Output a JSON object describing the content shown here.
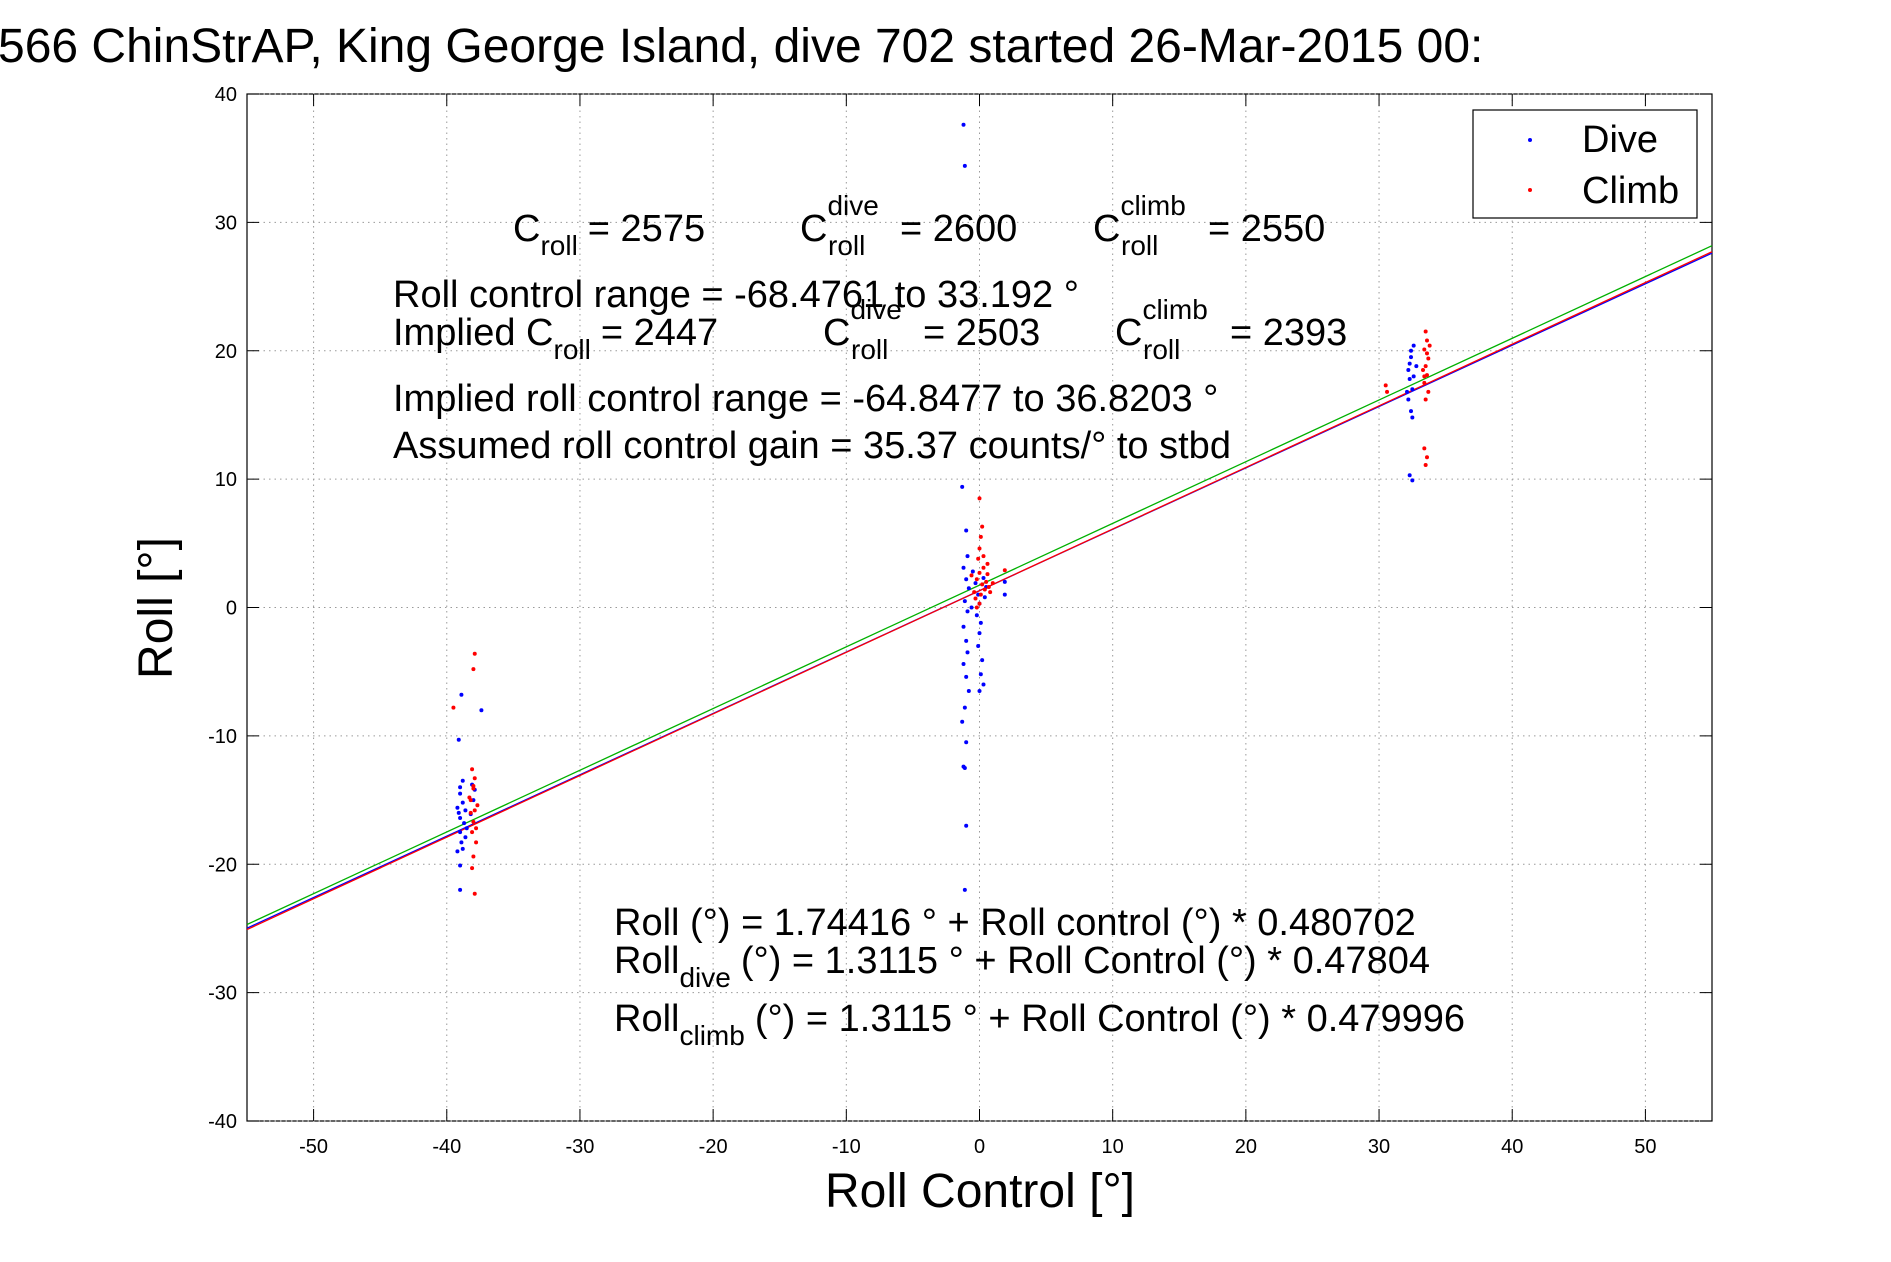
{
  "chart_data": {
    "type": "scatter",
    "title": "566 ChinStrAP, King George Island, dive 702 started 26-Mar-2015 00:",
    "xlabel": "Roll Control [°]",
    "ylabel": "Roll [°]",
    "xlim": [
      -55,
      55
    ],
    "ylim": [
      -40,
      40
    ],
    "xticks": [
      -50,
      -40,
      -30,
      -20,
      -10,
      0,
      10,
      20,
      30,
      40,
      50
    ],
    "yticks": [
      -40,
      -30,
      -20,
      -10,
      0,
      10,
      20,
      30,
      40
    ],
    "grid": true,
    "legend_position": "top-right",
    "colors": {
      "dive": "#0000ff",
      "climb": "#ff0000",
      "fit_all": "#00b000"
    },
    "series": [
      {
        "name": "Dive",
        "color": "#0000ff",
        "points": [
          [
            -39.0,
            -14.5
          ],
          [
            -38.8,
            -15.2
          ],
          [
            -39.1,
            -16.0
          ],
          [
            -38.7,
            -16.8
          ],
          [
            -39.0,
            -17.5
          ],
          [
            -38.9,
            -18.3
          ],
          [
            -39.2,
            -19.0
          ],
          [
            -39.0,
            -20.1
          ],
          [
            -39.0,
            -22.0
          ],
          [
            -39.1,
            -10.3
          ],
          [
            -39.0,
            -14.0
          ],
          [
            -38.8,
            -13.5
          ],
          [
            -38.6,
            -15.8
          ],
          [
            -39.0,
            -16.4
          ],
          [
            -38.5,
            -17.2
          ],
          [
            -38.0,
            -15.0
          ],
          [
            -38.2,
            -16.1
          ],
          [
            -37.9,
            -14.2
          ],
          [
            -38.1,
            -13.8
          ],
          [
            -37.4,
            -8.0
          ],
          [
            -38.9,
            -6.8
          ],
          [
            -38.8,
            -18.8
          ],
          [
            -38.6,
            -17.9
          ],
          [
            -39.2,
            -15.6
          ],
          [
            -1.2,
            37.6
          ],
          [
            -1.1,
            34.4
          ],
          [
            -1.3,
            9.4
          ],
          [
            -1.0,
            6.0
          ],
          [
            -0.9,
            4.0
          ],
          [
            -1.2,
            3.1
          ],
          [
            -1.0,
            2.2
          ],
          [
            -0.8,
            1.5
          ],
          [
            -1.1,
            0.5
          ],
          [
            -0.9,
            -0.3
          ],
          [
            -1.2,
            -1.5
          ],
          [
            -1.0,
            -2.6
          ],
          [
            -0.9,
            -3.5
          ],
          [
            -1.2,
            -4.4
          ],
          [
            -1.0,
            -5.4
          ],
          [
            -0.8,
            -6.5
          ],
          [
            -1.1,
            -7.8
          ],
          [
            -1.3,
            -8.9
          ],
          [
            -1.0,
            -10.5
          ],
          [
            -1.2,
            -12.4
          ],
          [
            -1.1,
            -12.5
          ],
          [
            -1.0,
            -17.0
          ],
          [
            -1.1,
            -22.0
          ],
          [
            -0.5,
            2.8
          ],
          [
            -0.3,
            1.9
          ],
          [
            -0.1,
            1.0
          ],
          [
            0.0,
            0.3
          ],
          [
            -0.2,
            -0.6
          ],
          [
            0.1,
            -1.2
          ],
          [
            0.0,
            -2.0
          ],
          [
            -0.1,
            -3.0
          ],
          [
            0.2,
            -4.1
          ],
          [
            0.1,
            -5.2
          ],
          [
            0.3,
            -6.0
          ],
          [
            0.0,
            -6.5
          ],
          [
            0.4,
            0.8
          ],
          [
            0.5,
            1.6
          ],
          [
            0.3,
            2.3
          ],
          [
            -0.6,
            0.0
          ],
          [
            1.9,
            2.0
          ],
          [
            1.9,
            1.0
          ],
          [
            32.2,
            18.5
          ],
          [
            32.4,
            19.5
          ],
          [
            32.6,
            20.4
          ],
          [
            32.3,
            17.8
          ],
          [
            32.5,
            17.0
          ],
          [
            32.2,
            16.2
          ],
          [
            32.4,
            15.3
          ],
          [
            32.5,
            14.8
          ],
          [
            32.3,
            19.0
          ],
          [
            32.6,
            18.0
          ],
          [
            32.4,
            20.0
          ],
          [
            32.5,
            9.9
          ],
          [
            32.3,
            10.3
          ],
          [
            32.8,
            18.8
          ],
          [
            32.1,
            16.8
          ]
        ]
      },
      {
        "name": "Climb",
        "color": "#ff0000",
        "points": [
          [
            -39.5,
            -7.8
          ],
          [
            -37.9,
            -3.6
          ],
          [
            -38.0,
            -4.8
          ],
          [
            -38.1,
            -12.6
          ],
          [
            -37.9,
            -13.3
          ],
          [
            -38.0,
            -14.1
          ],
          [
            -38.2,
            -15.0
          ],
          [
            -37.9,
            -15.8
          ],
          [
            -38.0,
            -16.7
          ],
          [
            -38.1,
            -17.5
          ],
          [
            -37.8,
            -18.3
          ],
          [
            -38.0,
            -19.4
          ],
          [
            -38.1,
            -20.3
          ],
          [
            -37.9,
            -22.3
          ],
          [
            -38.2,
            -16.0
          ],
          [
            -37.7,
            -15.4
          ],
          [
            -38.3,
            -14.8
          ],
          [
            -38.0,
            -13.9
          ],
          [
            -37.8,
            -17.2
          ],
          [
            0.0,
            8.5
          ],
          [
            0.2,
            6.3
          ],
          [
            0.1,
            5.5
          ],
          [
            0.0,
            4.6
          ],
          [
            -0.1,
            3.8
          ],
          [
            0.3,
            3.1
          ],
          [
            0.0,
            2.7
          ],
          [
            -0.2,
            2.2
          ],
          [
            0.2,
            1.8
          ],
          [
            0.4,
            1.4
          ],
          [
            0.1,
            1.0
          ],
          [
            -0.3,
            0.7
          ],
          [
            0.0,
            0.3
          ],
          [
            0.5,
            2.0
          ],
          [
            0.6,
            2.6
          ],
          [
            0.7,
            1.6
          ],
          [
            0.3,
            4.0
          ],
          [
            -0.4,
            1.2
          ],
          [
            -0.6,
            2.5
          ],
          [
            1.0,
            1.9
          ],
          [
            0.8,
            1.2
          ],
          [
            1.9,
            2.9
          ],
          [
            -0.2,
            0.0
          ],
          [
            0.6,
            3.4
          ],
          [
            30.5,
            17.3
          ],
          [
            30.6,
            16.8
          ],
          [
            33.5,
            21.5
          ],
          [
            33.6,
            20.8
          ],
          [
            33.4,
            20.1
          ],
          [
            33.7,
            19.4
          ],
          [
            33.5,
            18.8
          ],
          [
            33.6,
            18.1
          ],
          [
            33.4,
            17.5
          ],
          [
            33.7,
            16.8
          ],
          [
            33.5,
            16.2
          ],
          [
            33.6,
            19.8
          ],
          [
            33.3,
            18.5
          ],
          [
            33.8,
            20.4
          ],
          [
            33.4,
            12.4
          ],
          [
            33.6,
            11.7
          ],
          [
            33.5,
            11.1
          ],
          [
            33.4,
            18.0
          ]
        ]
      }
    ],
    "fit_lines": [
      {
        "color": "#0000ff",
        "intercept": 1.3115,
        "slope": 0.47804
      },
      {
        "color": "#ff0000",
        "intercept": 1.3115,
        "slope": 0.479996
      },
      {
        "color": "#00b000",
        "intercept": 1.74416,
        "slope": 0.480702
      }
    ],
    "annotations": {
      "c_roll": "C",
      "c_roll_sub": "roll",
      "c_roll_val": "= 2575",
      "c_dive": "C",
      "c_dive_sup": "dive",
      "c_dive_sub": "roll",
      "c_dive_val": "= 2600",
      "c_climb": "C",
      "c_climb_sup": "climb",
      "c_climb_sub": "roll",
      "c_climb_val": "= 2550",
      "range": "Roll control range = -68.4761 to 33.192 °",
      "implied_c": "Implied C",
      "implied_c_sub": "roll",
      "implied_c_val": "= 2447",
      "implied_dive": "C",
      "implied_dive_sup": "dive",
      "implied_dive_sub": "roll",
      "implied_dive_val": "= 2503",
      "implied_climb": "C",
      "implied_climb_sup": "climb",
      "implied_climb_sub": "roll",
      "implied_climb_val": "= 2393",
      "implied_range": "Implied roll control range = -64.8477 to 36.8203 °",
      "gain": "Assumed roll control gain = 35.37 counts/° to stbd",
      "eq_all": "Roll (°) = 1.74416 ° + Roll control (°) * 0.480702",
      "eq_dive_a": "Roll",
      "eq_dive_sub": "dive",
      "eq_dive_b": "(°) = 1.3115 ° + Roll Control (°) * 0.47804",
      "eq_climb_a": "Roll",
      "eq_climb_sub": "climb",
      "eq_climb_b": "(°) = 1.3115 ° + Roll Control (°) * 0.479996"
    }
  }
}
